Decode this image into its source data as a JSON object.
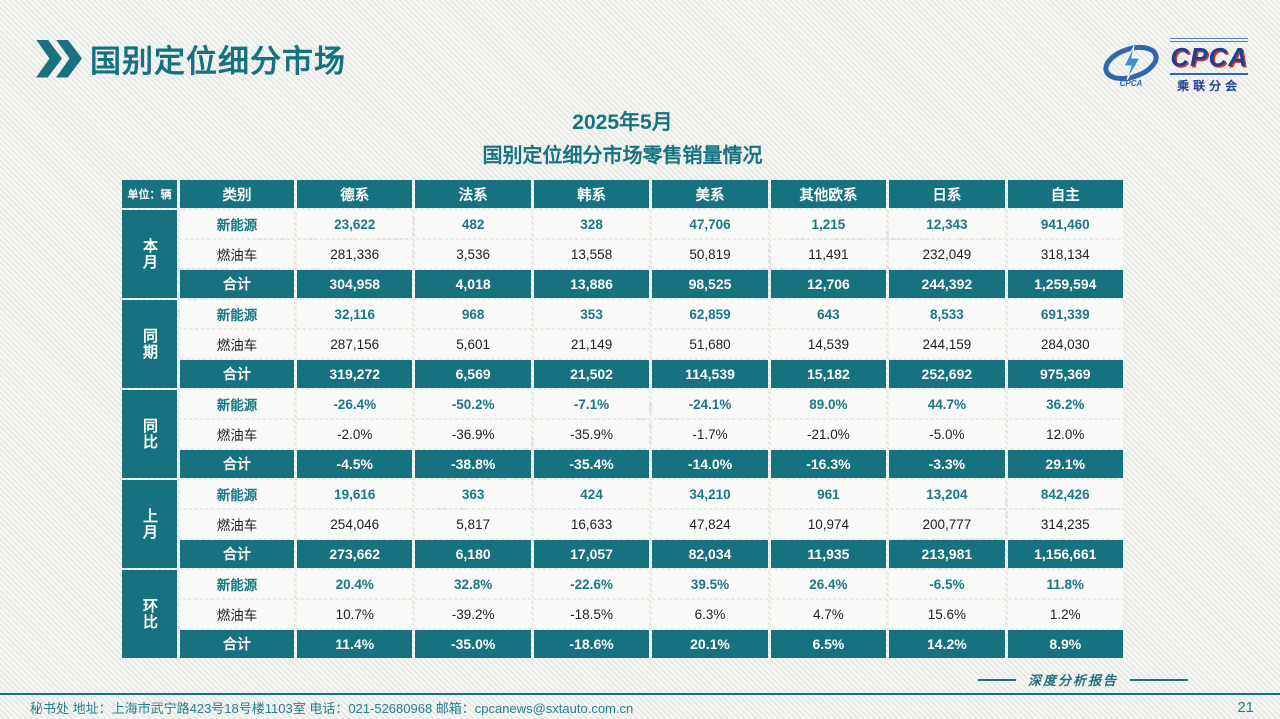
{
  "page": {
    "title": "国别定位细分市场",
    "subtitle_line1": "2025年5月",
    "subtitle_line2": "国别定位细分市场零售销量情况",
    "footer_info": "秘书处   地址：上海市武宁路423号18号楼1103室  电话：021-52680968   邮箱：cpcanews@sxtauto.com.cn",
    "report_label": "深度分析报告",
    "page_number": "21",
    "watermark": "乘联分会"
  },
  "logo": {
    "brand": "CPCA",
    "brand_sub": "乘联分会",
    "mark_caption": "CPCA"
  },
  "icons": {
    "title_marker": "chevron-double-right"
  },
  "colors": {
    "accent_teal": "#16727E",
    "nev_text": "#1A7884",
    "logo_blue": "#1D3F94",
    "logo_red": "#D4372B",
    "background": "#F1F1EE"
  },
  "table": {
    "unit_label": "单位：辆",
    "columns": [
      "类别",
      "德系",
      "法系",
      "韩系",
      "美系",
      "其他欧系",
      "日系",
      "自主"
    ],
    "row_labels": {
      "nev": "新能源",
      "ice": "燃油车",
      "total": "合计"
    },
    "groups": [
      {
        "name": "本月",
        "nev": [
          "23,622",
          "482",
          "328",
          "47,706",
          "1,215",
          "12,343",
          "941,460"
        ],
        "ice": [
          "281,336",
          "3,536",
          "13,558",
          "50,819",
          "11,491",
          "232,049",
          "318,134"
        ],
        "total": [
          "304,958",
          "4,018",
          "13,886",
          "98,525",
          "12,706",
          "244,392",
          "1,259,594"
        ]
      },
      {
        "name": "同期",
        "nev": [
          "32,116",
          "968",
          "353",
          "62,859",
          "643",
          "8,533",
          "691,339"
        ],
        "ice": [
          "287,156",
          "5,601",
          "21,149",
          "51,680",
          "14,539",
          "244,159",
          "284,030"
        ],
        "total": [
          "319,272",
          "6,569",
          "21,502",
          "114,539",
          "15,182",
          "252,692",
          "975,369"
        ]
      },
      {
        "name": "同比",
        "nev": [
          "-26.4%",
          "-50.2%",
          "-7.1%",
          "-24.1%",
          "89.0%",
          "44.7%",
          "36.2%"
        ],
        "ice": [
          "-2.0%",
          "-36.9%",
          "-35.9%",
          "-1.7%",
          "-21.0%",
          "-5.0%",
          "12.0%"
        ],
        "total": [
          "-4.5%",
          "-38.8%",
          "-35.4%",
          "-14.0%",
          "-16.3%",
          "-3.3%",
          "29.1%"
        ]
      },
      {
        "name": "上月",
        "nev": [
          "19,616",
          "363",
          "424",
          "34,210",
          "961",
          "13,204",
          "842,426"
        ],
        "ice": [
          "254,046",
          "5,817",
          "16,633",
          "47,824",
          "10,974",
          "200,777",
          "314,235"
        ],
        "total": [
          "273,662",
          "6,180",
          "17,057",
          "82,034",
          "11,935",
          "213,981",
          "1,156,661"
        ]
      },
      {
        "name": "环比",
        "nev": [
          "20.4%",
          "32.8%",
          "-22.6%",
          "39.5%",
          "26.4%",
          "-6.5%",
          "11.8%"
        ],
        "ice": [
          "10.7%",
          "-39.2%",
          "-18.5%",
          "6.3%",
          "4.7%",
          "15.6%",
          "1.2%"
        ],
        "total": [
          "11.4%",
          "-35.0%",
          "-18.6%",
          "20.1%",
          "6.5%",
          "14.2%",
          "8.9%"
        ]
      }
    ]
  }
}
